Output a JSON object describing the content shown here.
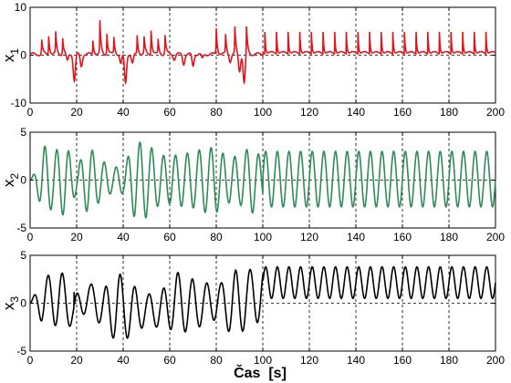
{
  "chart_data": [
    {
      "type": "line",
      "id": "x1",
      "ylabel_main": "x",
      "ylabel_sub": "1",
      "color": "#e0141a",
      "xlim": [
        0,
        200
      ],
      "ylim": [
        -10,
        10
      ],
      "xticks": [
        0,
        20,
        40,
        60,
        80,
        100,
        120,
        140,
        160,
        180,
        200
      ],
      "yticks": [
        -10,
        0,
        10
      ],
      "grid": "dashed vertical lines at every 20 s; dashed horizontal line at 0",
      "segments": [
        {
          "t_start": 0,
          "t_end": 100,
          "description": "irregular bursting spikes up to about +7 and down to about -6"
        },
        {
          "t_start": 100,
          "t_end": 200,
          "description": "regular periodic spikes, peaks about +6.5, troughs about 0.5, period about 5 s"
        }
      ],
      "spikes_up": [
        [
          5,
          3
        ],
        [
          8,
          4
        ],
        [
          11,
          4.5
        ],
        [
          14,
          3.5
        ],
        [
          27,
          3
        ],
        [
          30,
          6.8
        ],
        [
          33,
          4.5
        ],
        [
          36,
          3.5
        ],
        [
          46,
          4
        ],
        [
          49,
          3.5
        ],
        [
          52,
          5.2
        ],
        [
          55,
          3
        ],
        [
          58,
          4
        ],
        [
          80,
          5.5
        ],
        [
          84,
          4
        ],
        [
          88,
          5.5
        ],
        [
          93,
          6
        ]
      ],
      "spikes_down": [
        [
          16,
          -1.5
        ],
        [
          19,
          -5.5
        ],
        [
          22,
          -2.5
        ],
        [
          39,
          -2
        ],
        [
          41,
          -6
        ],
        [
          44,
          -2
        ],
        [
          62,
          -1
        ],
        [
          66,
          -2
        ],
        [
          70,
          -2.5
        ],
        [
          74,
          -1
        ],
        [
          86,
          -1.5
        ],
        [
          90,
          -3.5
        ],
        [
          92,
          -6
        ]
      ]
    },
    {
      "type": "line",
      "id": "x2",
      "ylabel_main": "x",
      "ylabel_sub": "2",
      "color": "#2e8b57",
      "xlim": [
        0,
        200
      ],
      "ylim": [
        -5,
        5
      ],
      "xticks": [
        0,
        20,
        40,
        60,
        80,
        100,
        120,
        140,
        160,
        180,
        200
      ],
      "yticks": [
        -5,
        0,
        5
      ],
      "grid": "dashed vertical lines at every 20 s; dashed horizontal line at 0",
      "segments": [
        {
          "t_start": 0,
          "t_end": 100,
          "description": "irregular oscillation, amplitude varying between about 1 and 4"
        },
        {
          "t_start": 100,
          "t_end": 200,
          "description": "regular oscillation, amplitude about 3, period about 5 s"
        }
      ]
    },
    {
      "type": "line",
      "id": "x3",
      "ylabel_main": "x",
      "ylabel_sub": "3",
      "color": "#000000",
      "xlim": [
        0,
        200
      ],
      "ylim": [
        -5,
        5
      ],
      "xticks": [
        0,
        20,
        40,
        60,
        80,
        100,
        120,
        140,
        160,
        180,
        200
      ],
      "yticks": [
        -5,
        0,
        5
      ],
      "grid": "dashed vertical lines at every 20 s; dashed horizontal line at 0",
      "xlabel": "Čas  [s]",
      "segments": [
        {
          "t_start": 0,
          "t_end": 100,
          "description": "irregular oscillation, values between about -4 and +4"
        },
        {
          "t_start": 100,
          "t_end": 200,
          "description": "regular oscillation between about 0.5 and 3.8, period about 5 s"
        }
      ]
    }
  ]
}
